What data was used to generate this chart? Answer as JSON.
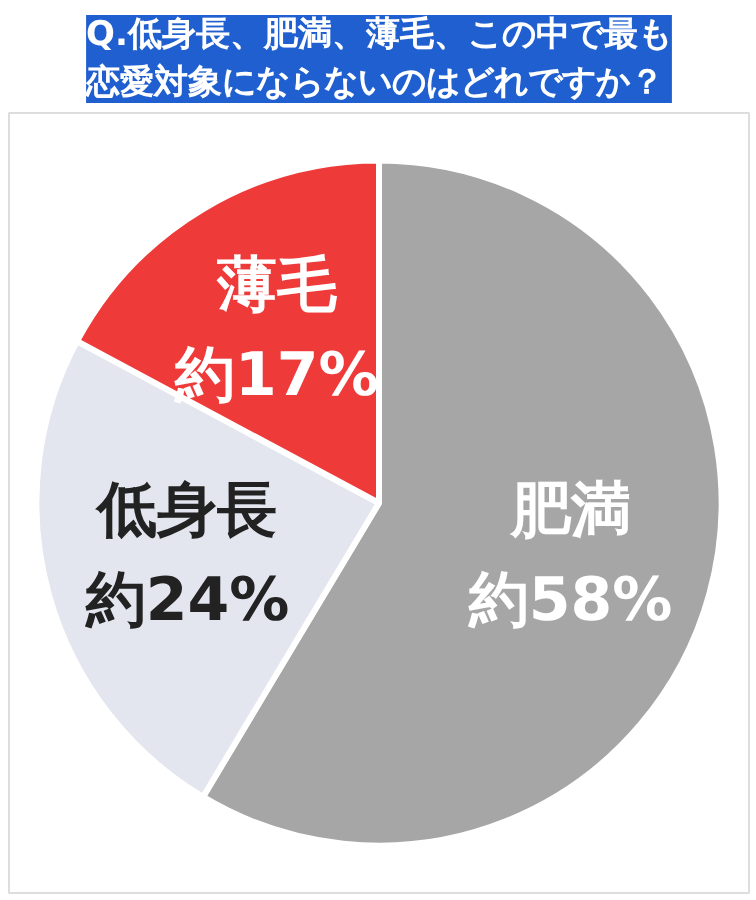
{
  "chart_data": {
    "type": "pie",
    "title": "Q.低身長、肥満、薄毛、この中で最も恋愛対象にならないのはどれですか？",
    "categories": [
      "肥満",
      "低身長",
      "薄毛"
    ],
    "values": [
      58,
      24,
      17
    ],
    "value_labels": [
      "約58%",
      "約24%",
      "約17%"
    ],
    "colors": [
      "#a6a6a6",
      "#e3e5ef",
      "#ef3a3a"
    ]
  }
}
